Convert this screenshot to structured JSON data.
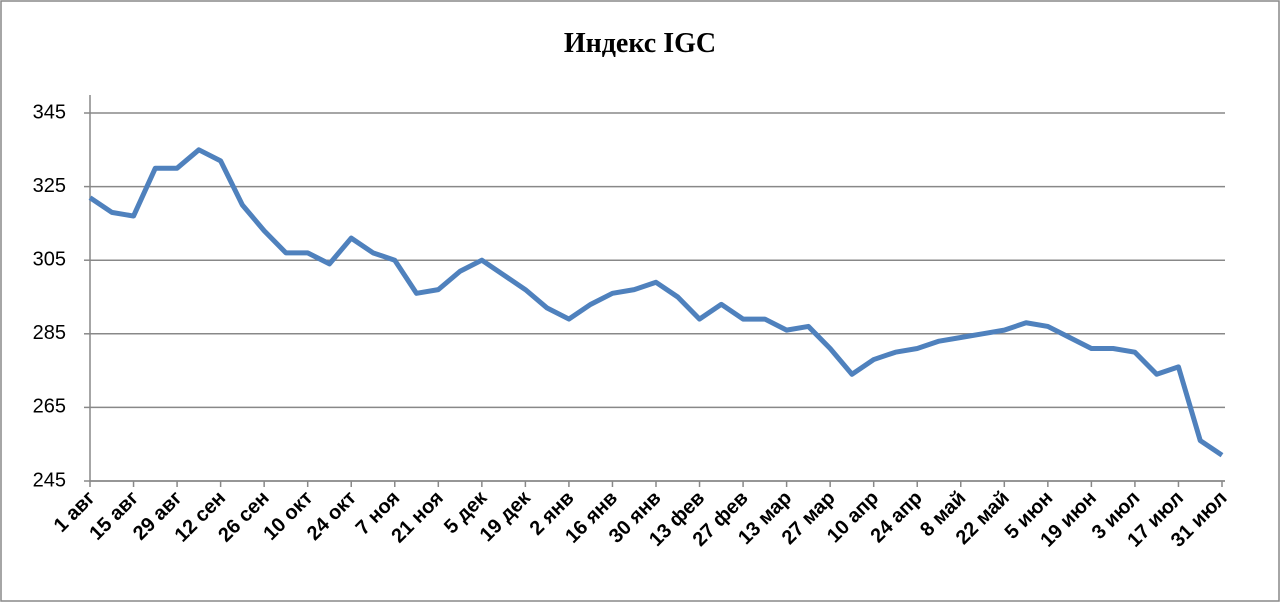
{
  "chart_data": {
    "type": "line",
    "title": "Индекс IGC",
    "categories": [
      "1 авг",
      null,
      "15 авг",
      null,
      "29 авг",
      null,
      "12 сен",
      null,
      "26 сен",
      null,
      "10 окт",
      null,
      "24 окт",
      null,
      "7 ноя",
      null,
      "21 ноя",
      null,
      "5 дек",
      null,
      "19 дек",
      null,
      "2 янв",
      null,
      "16 янв",
      null,
      "30 янв",
      null,
      "13 фев",
      null,
      "27 фев",
      null,
      "13 мар",
      null,
      "27 мар",
      null,
      "10 апр",
      null,
      "24 апр",
      null,
      "8 май",
      null,
      "22 май",
      null,
      "5 июн",
      null,
      "19 июн",
      null,
      "3 июл",
      null,
      "17 июл",
      null,
      "31 июл"
    ],
    "series": [
      {
        "name": "Индекс IGC",
        "color": "#4f81bd",
        "values": [
          322,
          318,
          317,
          330,
          330,
          335,
          332,
          320,
          313,
          307,
          307,
          304,
          311,
          307,
          305,
          296,
          297,
          302,
          305,
          301,
          297,
          292,
          289,
          293,
          296,
          297,
          299,
          295,
          289,
          293,
          289,
          289,
          286,
          287,
          281,
          274,
          278,
          280,
          281,
          283,
          284,
          285,
          286,
          288,
          287,
          284,
          281,
          281,
          280,
          274,
          276,
          256,
          252
        ]
      }
    ],
    "ylim": [
      245,
      345
    ],
    "yticks": [
      245,
      265,
      285,
      305,
      325,
      345
    ],
    "grid": true
  }
}
